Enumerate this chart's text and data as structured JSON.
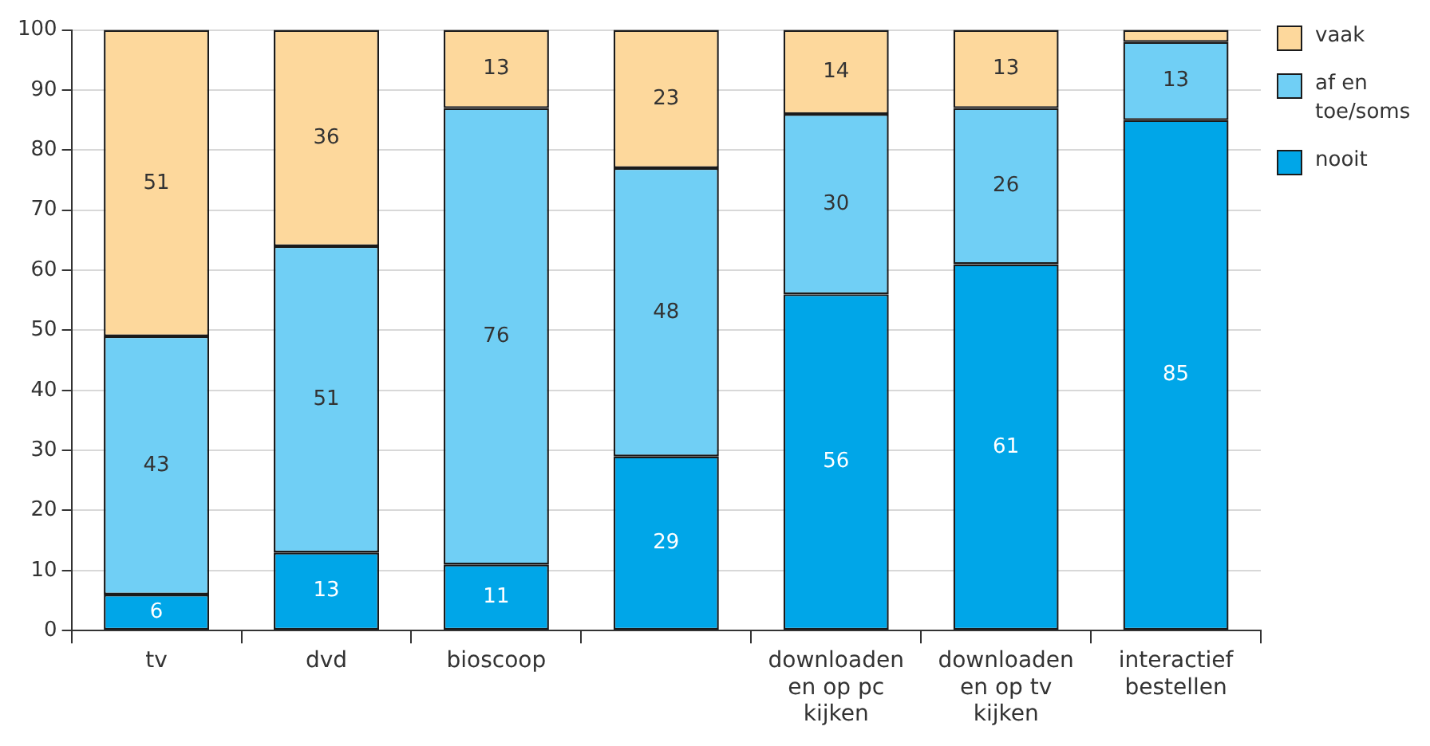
{
  "chart_data": {
    "type": "bar",
    "stacked": true,
    "categories": [
      "tv",
      "dvd",
      "bioscoop",
      null,
      "downloaden en op pc kijken",
      "downloaden en op tv kijken",
      "interactief bestellen"
    ],
    "series": [
      {
        "name": "nooit",
        "color": "#00a6e8",
        "values": [
          6,
          13,
          11,
          29,
          56,
          61,
          85
        ],
        "value_labels": [
          "6",
          "13",
          "11",
          "29",
          "56",
          "61",
          "85"
        ]
      },
      {
        "name": "af en toe/soms",
        "color": "#70cff5",
        "values": [
          43,
          51,
          76,
          48,
          30,
          26,
          13
        ],
        "value_labels": [
          "43",
          "51",
          "76",
          "48",
          "30",
          "26",
          "13"
        ]
      },
      {
        "name": "vaak",
        "color": "#fdd89c",
        "values": [
          51,
          36,
          13,
          23,
          14,
          13,
          2
        ],
        "value_labels": [
          "51",
          "36",
          "13",
          "23",
          "14",
          "13",
          null
        ]
      }
    ],
    "ylim": [
      0,
      100
    ],
    "yticks": [
      0,
      10,
      20,
      30,
      40,
      50,
      60,
      70,
      80,
      90,
      100
    ],
    "grid": "y",
    "legend": "top right"
  }
}
